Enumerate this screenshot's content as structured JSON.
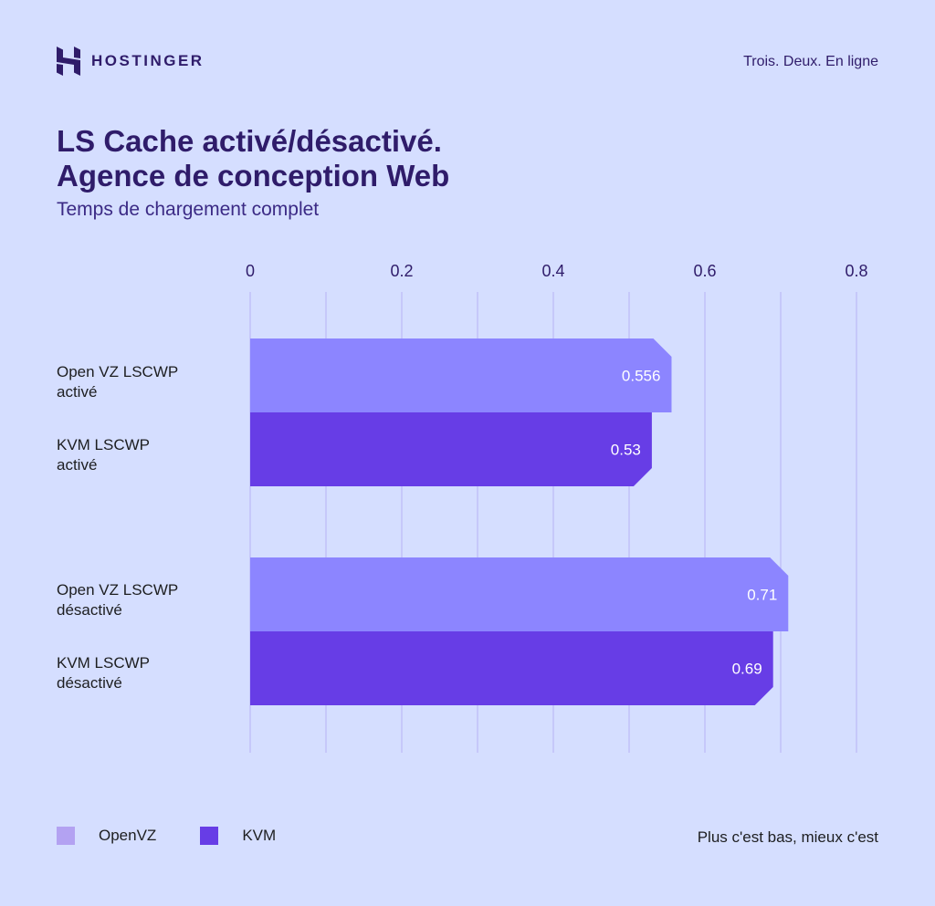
{
  "header": {
    "brand": "HOSTINGER",
    "tagline": "Trois. Deux. En ligne"
  },
  "chart_data": {
    "type": "bar",
    "orientation": "horizontal",
    "title": "LS Cache activé/désactivé.\nAgence de conception Web",
    "title_lines": [
      "LS Cache activé/désactivé.",
      "Agence de conception Web"
    ],
    "subtitle": "Temps de chargement complet",
    "xlim": [
      0,
      0.8
    ],
    "xticks": [
      "0",
      "0.2",
      "0.4",
      "0.6",
      "0.8"
    ],
    "grid": true,
    "categories": [
      {
        "lines": [
          "Open VZ LSCWP",
          "activé"
        ],
        "series": "OpenVZ",
        "value": 0.556,
        "label": "0.556"
      },
      {
        "lines": [
          "KVM LSCWP",
          "activé"
        ],
        "series": "KVM",
        "value": 0.53,
        "label": "0.53"
      },
      {
        "lines": [
          "Open VZ LSCWP",
          "désactivé"
        ],
        "series": "OpenVZ",
        "value": 0.71,
        "label": "0.71"
      },
      {
        "lines": [
          "KVM LSCWP",
          "désactivé"
        ],
        "series": "KVM",
        "value": 0.69,
        "label": "0.69"
      }
    ],
    "legend": [
      {
        "name": "OpenVZ",
        "color": "#b3a2f2",
        "bar_color": "#8c85ff"
      },
      {
        "name": "KVM",
        "color": "#673de6",
        "bar_color": "#673de6"
      }
    ],
    "legend_position": "bottom-left",
    "note": "Plus c'est bas, mieux c'est"
  }
}
